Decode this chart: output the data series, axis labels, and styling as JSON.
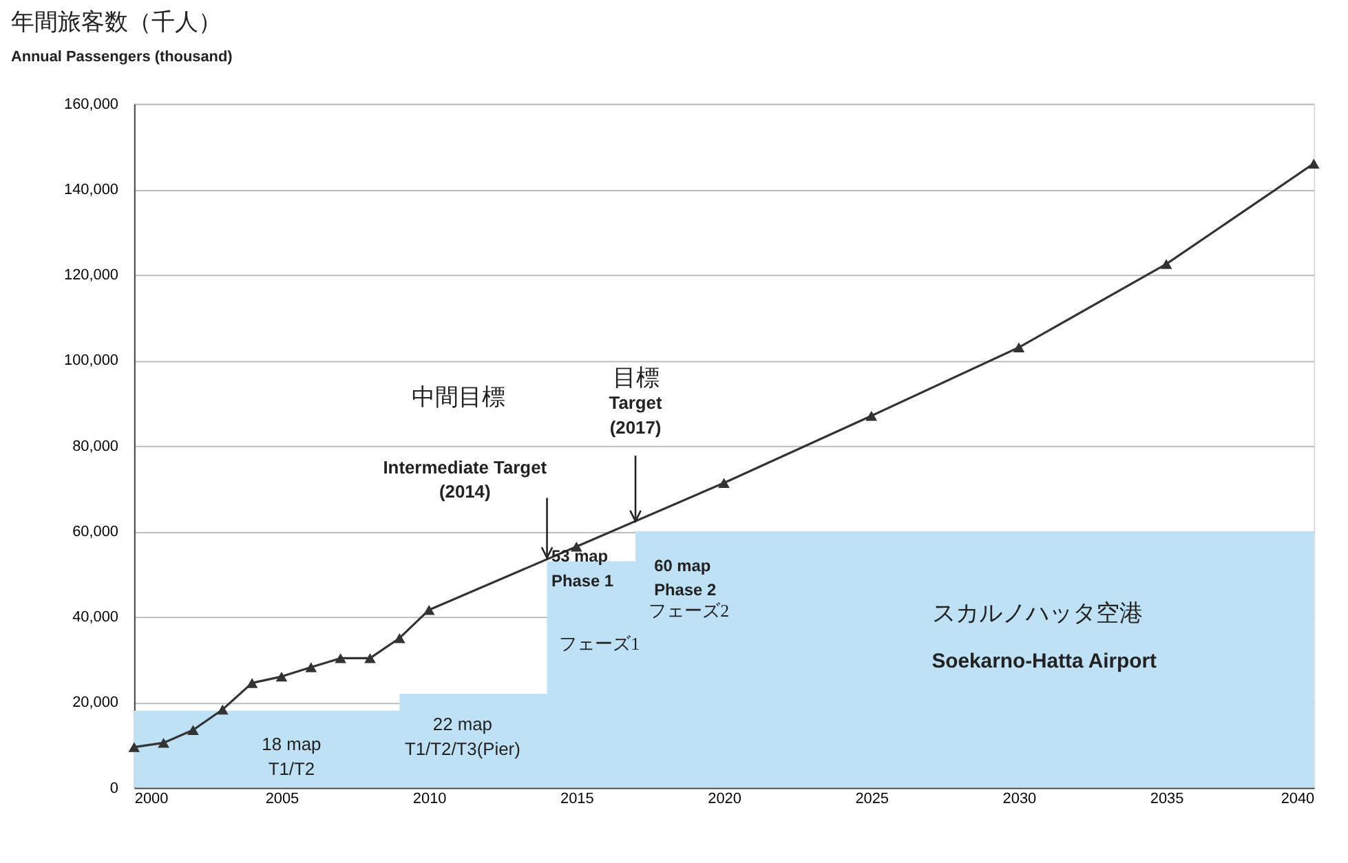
{
  "chart_data": {
    "type": "line",
    "title": "年間旅客数（千人）",
    "subtitle": "Annual Passengers (thousand)",
    "xlim": [
      2000,
      2040
    ],
    "xticks": [
      2000,
      2005,
      2010,
      2015,
      2020,
      2025,
      2030,
      2035,
      2040
    ],
    "ylim": [
      0,
      160000
    ],
    "yticks": [
      {
        "value": 0,
        "label": "0"
      },
      {
        "value": 20000,
        "label": "20,000"
      },
      {
        "value": 40000,
        "label": "40,000"
      },
      {
        "value": 60000,
        "label": "60,000"
      },
      {
        "value": 80000,
        "label": "80,000"
      },
      {
        "value": 100000,
        "label": "100,000"
      },
      {
        "value": 120000,
        "label": "120,000"
      },
      {
        "value": 140000,
        "label": "140,000"
      },
      {
        "value": 160000,
        "label": "160,000"
      }
    ],
    "grid": "y",
    "line_style": "solid",
    "series": [
      {
        "type": "area",
        "color": "#bfe1f5",
        "x": [
          2000,
          2009,
          2014,
          2017,
          2040
        ],
        "values": [
          18000,
          22000,
          53000,
          60000,
          60000
        ]
      },
      {
        "color": "#333333",
        "marker": "triangle",
        "x": [
          2000,
          2001,
          2002,
          2003,
          2004,
          2005,
          2006,
          2007,
          2008,
          2009,
          2010,
          2015,
          2020,
          2025,
          2030,
          2035,
          2040
        ],
        "values": [
          9500,
          10500,
          13500,
          18300,
          24500,
          26000,
          28200,
          30300,
          30300,
          35000,
          41600,
          56400,
          71300,
          87000,
          103000,
          122500,
          146000
        ]
      }
    ],
    "annotations": [
      "18 map\nT1/T2",
      "22 map\nT1/T2/T3(Pier)",
      "53 map\nPhase 1",
      "フェーズ1",
      "60 map\nPhase 2",
      "フェーズ2",
      "スカルノハッタ空港",
      "Soekarno-Hatta Airport",
      "中間目標",
      {
        "text": "Intermediate Target\n(2014)",
        "x": 2014,
        "y": 53400
      },
      "目標",
      {
        "text": "Target\n(2017)",
        "x": 2017,
        "y": 62000
      }
    ]
  }
}
